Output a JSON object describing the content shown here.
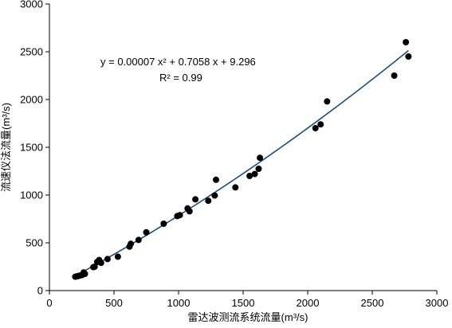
{
  "chart_data": {
    "type": "scatter",
    "title": "",
    "xlabel": "雷达波测流系统流量(m³/s)",
    "ylabel": "流速仪法流量(m³/s)",
    "xlim": [
      0,
      3000
    ],
    "ylim": [
      0,
      3000
    ],
    "x_ticks": [
      "0",
      "500",
      "1000",
      "1500",
      "2000",
      "2500",
      "3000"
    ],
    "y_ticks": [
      "0",
      "500",
      "1000",
      "1500",
      "2000",
      "2500",
      "3000"
    ],
    "grid": false,
    "legend": "none",
    "marker_color": "#000000",
    "trendline_color": "#1f4e79",
    "trendline": {
      "type": "polynomial",
      "equation": "y = 0.00007 x² + 0.7058 x + 9.296",
      "r_squared": "R² = 0.99",
      "coefficients": [
        7e-05,
        0.7058,
        9.296
      ],
      "x_range": [
        200,
        2780
      ]
    },
    "points": [
      {
        "x": 200,
        "y": 145
      },
      {
        "x": 215,
        "y": 150
      },
      {
        "x": 230,
        "y": 155
      },
      {
        "x": 245,
        "y": 160
      },
      {
        "x": 255,
        "y": 165
      },
      {
        "x": 265,
        "y": 190
      },
      {
        "x": 275,
        "y": 175
      },
      {
        "x": 340,
        "y": 245
      },
      {
        "x": 350,
        "y": 250
      },
      {
        "x": 370,
        "y": 300
      },
      {
        "x": 385,
        "y": 320
      },
      {
        "x": 400,
        "y": 290
      },
      {
        "x": 450,
        "y": 330
      },
      {
        "x": 530,
        "y": 355
      },
      {
        "x": 620,
        "y": 460
      },
      {
        "x": 630,
        "y": 490
      },
      {
        "x": 690,
        "y": 530
      },
      {
        "x": 750,
        "y": 610
      },
      {
        "x": 885,
        "y": 700
      },
      {
        "x": 990,
        "y": 780
      },
      {
        "x": 1010,
        "y": 790
      },
      {
        "x": 1070,
        "y": 860
      },
      {
        "x": 1085,
        "y": 830
      },
      {
        "x": 1130,
        "y": 955
      },
      {
        "x": 1230,
        "y": 940
      },
      {
        "x": 1280,
        "y": 995
      },
      {
        "x": 1290,
        "y": 1160
      },
      {
        "x": 1440,
        "y": 1080
      },
      {
        "x": 1550,
        "y": 1200
      },
      {
        "x": 1590,
        "y": 1220
      },
      {
        "x": 1620,
        "y": 1275
      },
      {
        "x": 1630,
        "y": 1390
      },
      {
        "x": 2060,
        "y": 1700
      },
      {
        "x": 2100,
        "y": 1740
      },
      {
        "x": 2150,
        "y": 1980
      },
      {
        "x": 2670,
        "y": 2250
      },
      {
        "x": 2760,
        "y": 2600
      },
      {
        "x": 2780,
        "y": 2450
      }
    ]
  }
}
